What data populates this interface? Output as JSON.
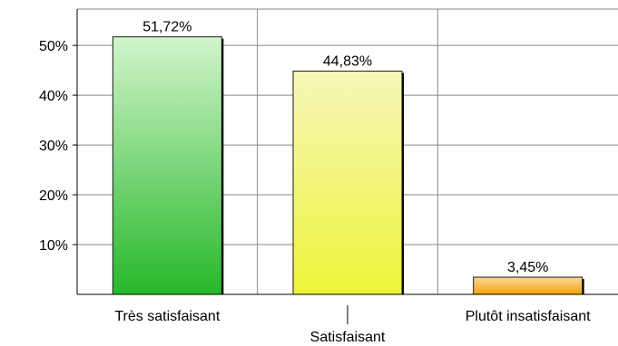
{
  "chart_data": {
    "type": "bar",
    "categories": [
      "Très satisfaisant",
      "Satisfaisant",
      "Plutôt insatisfaisant"
    ],
    "values": [
      51.72,
      44.83,
      3.45
    ],
    "value_labels": [
      "51,72%",
      "44,83%",
      "3,45%"
    ],
    "title": "",
    "xlabel": "",
    "ylabel": "",
    "ylim": [
      0,
      57.3
    ],
    "yticks": [
      10,
      20,
      30,
      40,
      50
    ],
    "ytick_labels": [
      "10%",
      "20%",
      "30%",
      "40%",
      "50%"
    ],
    "grid": true,
    "legend": "none",
    "colors": {
      "bar_top": [
        "#d2f5cc",
        "#f5f7b8",
        "#fcd79a"
      ],
      "bar_bottom": [
        "#27b82b",
        "#eef338",
        "#f2a30c"
      ],
      "grid": "#888888",
      "axis": "#000000"
    }
  }
}
